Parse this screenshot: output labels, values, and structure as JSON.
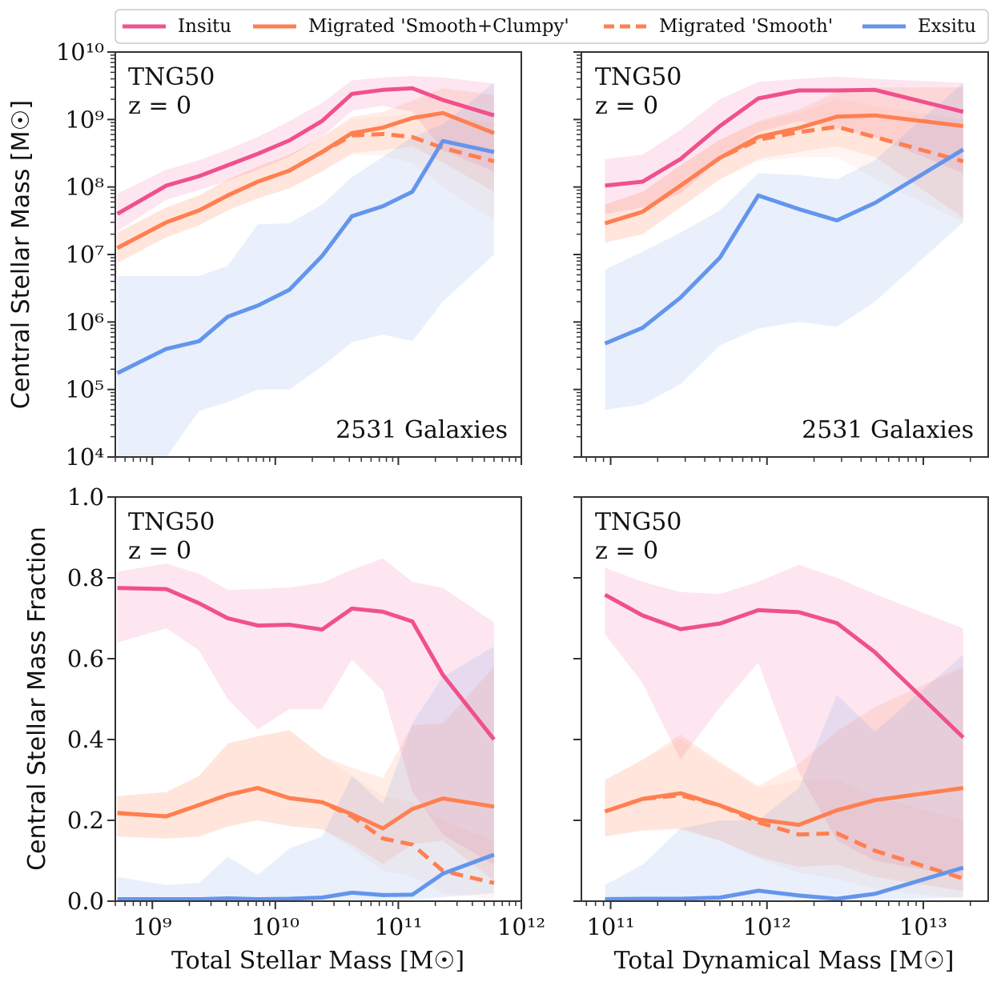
{
  "legend": {
    "items": [
      {
        "key": "insitu",
        "label": "Insitu"
      },
      {
        "key": "mig_sc",
        "label": "Migrated 'Smooth+Clumpy'"
      },
      {
        "key": "mig_s",
        "label": "Migrated 'Smooth'"
      },
      {
        "key": "exsitu",
        "label": "Exsitu"
      }
    ],
    "placement": "top-center"
  },
  "colors": {
    "insitu": "#f0508c",
    "mig_sc": "#ff7f50",
    "mig_s": "#ff7f50",
    "exsitu": "#6495ed"
  },
  "axis_labels": {
    "y_top": "Central Stellar Mass [M☉]",
    "y_bottom": "Central Stellar Mass Fraction",
    "x_left": "Total Stellar Mass [M☉]",
    "x_right": "Total Dynamical Mass [M☉]"
  },
  "chart_data": [
    {
      "id": "top-left",
      "type": "line",
      "annotations": [
        "TNG50",
        "z = 0",
        "2531 Galaxies"
      ],
      "xscale": "log",
      "yscale": "log",
      "xlim": [
        500000000.0,
        1000000000000.0
      ],
      "ylim": [
        10000.0,
        10000000000.0
      ],
      "xticks": [
        1000000000.0,
        10000000000.0,
        100000000000.0,
        1000000000000.0
      ],
      "yticks": [
        10000.0,
        100000.0,
        1000000.0,
        10000000.0,
        100000000.0,
        1000000000.0,
        10000000000.0
      ],
      "x": [
        520000000.0,
        1300000000.0,
        2400000000.0,
        4100000000.0,
        7200000000.0,
        13000000000.0,
        24000000000.0,
        42000000000.0,
        75000000000.0,
        130000000000.0,
        230000000000.0,
        600000000000.0
      ],
      "series": [
        {
          "key": "insitu",
          "values": [
            40000000.0,
            105000000.0,
            145000000.0,
            210000000.0,
            310000000.0,
            490000000.0,
            950000000.0,
            2400000000.0,
            2750000000.0,
            2900000000.0,
            1950000000.0,
            1150000000.0
          ],
          "band": {
            "lo": [
              22000000.0,
              65000000.0,
              90000000.0,
              125000000.0,
              180000000.0,
              280000000.0,
              550000000.0,
              1350000000.0,
              1600000000.0,
              1300000000.0,
              350000000.0,
              170000000.0
            ],
            "hi": [
              80000000.0,
              180000000.0,
              250000000.0,
              360000000.0,
              550000000.0,
              950000000.0,
              1750000000.0,
              3800000000.0,
              4200000000.0,
              4400000000.0,
              4200000000.0,
              3400000000.0
            ]
          }
        },
        {
          "key": "mig_sc",
          "values": [
            12500000.0,
            30000000.0,
            45000000.0,
            75000000.0,
            120000000.0,
            175000000.0,
            330000000.0,
            630000000.0,
            760000000.0,
            1050000000.0,
            1250000000.0,
            630000000.0
          ],
          "band": {
            "lo": [
              7500000.0,
              18000000.0,
              27000000.0,
              45000000.0,
              68000000.0,
              95000000.0,
              170000000.0,
              320000000.0,
              350000000.0,
              400000000.0,
              230000000.0,
              85000000.0
            ],
            "hi": [
              21000000.0,
              50000000.0,
              75000000.0,
              130000000.0,
              200000000.0,
              300000000.0,
              550000000.0,
              1100000000.0,
              1300000000.0,
              1900000000.0,
              2900000000.0,
              2300000000.0
            ]
          }
        },
        {
          "key": "mig_s",
          "dashed": true,
          "values": [
            12500000.0,
            30000000.0,
            45000000.0,
            75000000.0,
            120000000.0,
            175000000.0,
            330000000.0,
            580000000.0,
            610000000.0,
            550000000.0,
            380000000.0,
            240000000.0
          ],
          "band": {
            "lo": [
              7500000.0,
              18000000.0,
              27000000.0,
              45000000.0,
              68000000.0,
              95000000.0,
              170000000.0,
              300000000.0,
              290000000.0,
              230000000.0,
              100000000.0,
              32000000.0
            ],
            "hi": [
              21000000.0,
              50000000.0,
              75000000.0,
              130000000.0,
              200000000.0,
              300000000.0,
              550000000.0,
              1000000000.0,
              1100000000.0,
              1200000000.0,
              1100000000.0,
              900000000.0
            ]
          }
        },
        {
          "key": "exsitu",
          "values": [
            175000.0,
            400000.0,
            520000.0,
            1200000.0,
            1750000.0,
            3000000.0,
            9500000.0,
            37000000.0,
            52000000.0,
            85000000.0,
            480000000.0,
            330000000.0
          ],
          "band": {
            "lo": [
              10000.0,
              10000.0,
              48000.0,
              65000.0,
              100000.0,
              100000.0,
              220000.0,
              500000.0,
              650000.0,
              520000.0,
              2000000.0,
              10000000.0
            ],
            "hi": [
              4800000.0,
              4800000.0,
              4800000.0,
              6800000.0,
              28000000.0,
              29000000.0,
              55000000.0,
              140000000.0,
              280000000.0,
              550000000.0,
              850000000.0,
              3500000000.0
            ]
          }
        }
      ]
    },
    {
      "id": "top-right",
      "type": "line",
      "annotations": [
        "TNG50",
        "z = 0",
        "2531 Galaxies"
      ],
      "xscale": "log",
      "yscale": "log",
      "xlim": [
        65000000000.0,
        26000000000000.0
      ],
      "ylim": [
        10000.0,
        10000000000.0
      ],
      "xticks": [
        100000000000.0,
        1000000000000.0,
        10000000000000.0
      ],
      "yticks": [
        10000.0,
        100000.0,
        1000000.0,
        10000000.0,
        100000000.0,
        1000000000.0,
        10000000000.0
      ],
      "x": [
        92000000000.0,
        160000000000.0,
        280000000000.0,
        500000000000.0,
        880000000000.0,
        1600000000000.0,
        2800000000000.0,
        4900000000000.0,
        18000000000000.0
      ],
      "series": [
        {
          "key": "insitu",
          "values": [
            105000000.0,
            120000000.0,
            260000000.0,
            800000000.0,
            2050000000.0,
            2700000000.0,
            2700000000.0,
            2750000000.0,
            1300000000.0
          ],
          "band": {
            "lo": [
              40000000.0,
              50000000.0,
              80000000.0,
              260000000.0,
              650000000.0,
              950000000.0,
              750000000.0,
              550000000.0,
              160000000.0
            ],
            "hi": [
              260000000.0,
              300000000.0,
              700000000.0,
              2000000000.0,
              3600000000.0,
              4000000000.0,
              4300000000.0,
              4000000000.0,
              3500000000.0
            ]
          }
        },
        {
          "key": "mig_sc",
          "values": [
            29000000.0,
            43000000.0,
            105000000.0,
            270000000.0,
            550000000.0,
            750000000.0,
            1100000000.0,
            1150000000.0,
            800000000.0
          ],
          "band": {
            "lo": [
              15000000.0,
              20000000.0,
              50000000.0,
              130000000.0,
              260000000.0,
              330000000.0,
              400000000.0,
              280000000.0,
              35000000.0
            ],
            "hi": [
              55000000.0,
              85000000.0,
              210000000.0,
              500000000.0,
              950000000.0,
              1400000000.0,
              2600000000.0,
              3000000000.0,
              3000000000.0
            ]
          }
        },
        {
          "key": "mig_s",
          "dashed": true,
          "values": [
            29000000.0,
            43000000.0,
            105000000.0,
            270000000.0,
            500000000.0,
            650000000.0,
            780000000.0,
            550000000.0,
            240000000.0
          ],
          "band": {
            "lo": [
              15000000.0,
              20000000.0,
              50000000.0,
              130000000.0,
              240000000.0,
              280000000.0,
              280000000.0,
              130000000.0,
              30000000.0
            ],
            "hi": [
              55000000.0,
              85000000.0,
              210000000.0,
              500000000.0,
              900000000.0,
              1250000000.0,
              2000000000.0,
              1600000000.0,
              1000000000.0
            ]
          }
        },
        {
          "key": "exsitu",
          "values": [
            480000.0,
            820000.0,
            2300000.0,
            9000000.0,
            75000000.0,
            47000000.0,
            32000000.0,
            58000000.0,
            360000000.0
          ],
          "band": {
            "lo": [
              50000.0,
              60000.0,
              120000.0,
              450000.0,
              800000.0,
              1000000.0,
              850000.0,
              2000000.0,
              30000000.0
            ],
            "hi": [
              6000000.0,
              11000000.0,
              21000000.0,
              45000000.0,
              160000000.0,
              150000000.0,
              130000000.0,
              250000000.0,
              3500000000.0
            ]
          }
        }
      ]
    },
    {
      "id": "bottom-left",
      "type": "line",
      "annotations": [
        "TNG50",
        "z = 0"
      ],
      "xscale": "log",
      "yscale": "linear",
      "xlim": [
        500000000.0,
        1000000000000.0
      ],
      "ylim": [
        0.0,
        1.0
      ],
      "xticks": [
        1000000000.0,
        10000000000.0,
        100000000000.0,
        1000000000000.0
      ],
      "yticks": [
        0.0,
        0.2,
        0.4,
        0.6,
        0.8,
        1.0
      ],
      "x": [
        520000000.0,
        1300000000.0,
        2400000000.0,
        4100000000.0,
        7200000000.0,
        13000000000.0,
        24000000000.0,
        42000000000.0,
        75000000000.0,
        130000000000.0,
        230000000000.0,
        600000000000.0
      ],
      "series": [
        {
          "key": "insitu",
          "values": [
            0.775,
            0.772,
            0.737,
            0.7,
            0.682,
            0.684,
            0.672,
            0.724,
            0.716,
            0.692,
            0.56,
            0.4
          ],
          "band": {
            "lo": [
              0.64,
              0.675,
              0.62,
              0.5,
              0.425,
              0.475,
              0.475,
              0.598,
              0.52,
              0.27,
              0.165,
              0.09
            ],
            "hi": [
              0.815,
              0.835,
              0.81,
              0.77,
              0.772,
              0.776,
              0.788,
              0.82,
              0.848,
              0.79,
              0.775,
              0.69
            ]
          }
        },
        {
          "key": "mig_sc",
          "values": [
            0.218,
            0.21,
            0.238,
            0.263,
            0.28,
            0.255,
            0.245,
            0.215,
            0.18,
            0.228,
            0.254,
            0.234
          ],
          "band": {
            "lo": [
              0.16,
              0.155,
              0.16,
              0.185,
              0.2,
              0.186,
              0.178,
              0.14,
              0.092,
              0.14,
              0.15,
              0.05
            ],
            "hi": [
              0.26,
              0.27,
              0.31,
              0.39,
              0.408,
              0.423,
              0.36,
              0.33,
              0.305,
              0.435,
              0.44,
              0.58
            ]
          }
        },
        {
          "key": "mig_s",
          "dashed": true,
          "values": [
            0.218,
            0.21,
            0.238,
            0.263,
            0.28,
            0.255,
            0.245,
            0.21,
            0.155,
            0.14,
            0.075,
            0.045
          ],
          "band": {
            "lo": [
              0.16,
              0.155,
              0.16,
              0.185,
              0.2,
              0.186,
              0.178,
              0.13,
              0.075,
              0.06,
              0.02,
              0.005
            ],
            "hi": [
              0.26,
              0.27,
              0.31,
              0.39,
              0.408,
              0.423,
              0.36,
              0.31,
              0.26,
              0.245,
              0.2,
              0.15
            ]
          }
        },
        {
          "key": "exsitu",
          "values": [
            0.005,
            0.005,
            0.005,
            0.007,
            0.005,
            0.006,
            0.009,
            0.021,
            0.015,
            0.016,
            0.068,
            0.115
          ],
          "band": {
            "lo": [
              0.0,
              0.0,
              0.0,
              0.0,
              0.0,
              0.0,
              0.0,
              0.002,
              0.002,
              0.004,
              0.01,
              0.02
            ],
            "hi": [
              0.06,
              0.04,
              0.045,
              0.11,
              0.065,
              0.13,
              0.16,
              0.31,
              0.24,
              0.44,
              0.555,
              0.63
            ]
          }
        }
      ]
    },
    {
      "id": "bottom-right",
      "type": "line",
      "annotations": [
        "TNG50",
        "z = 0"
      ],
      "xscale": "log",
      "yscale": "linear",
      "xlim": [
        65000000000.0,
        26000000000000.0
      ],
      "ylim": [
        0.0,
        1.0
      ],
      "xticks": [
        100000000000.0,
        1000000000000.0,
        10000000000000.0
      ],
      "yticks": [
        0.0,
        0.2,
        0.4,
        0.6,
        0.8,
        1.0
      ],
      "x": [
        92000000000.0,
        160000000000.0,
        280000000000.0,
        500000000000.0,
        880000000000.0,
        1600000000000.0,
        2800000000000.0,
        4900000000000.0,
        18000000000000.0
      ],
      "series": [
        {
          "key": "insitu",
          "values": [
            0.758,
            0.707,
            0.673,
            0.687,
            0.72,
            0.715,
            0.688,
            0.616,
            0.405
          ],
          "band": {
            "lo": [
              0.66,
              0.54,
              0.35,
              0.48,
              0.59,
              0.32,
              0.15,
              0.1,
              0.06
            ],
            "hi": [
              0.825,
              0.79,
              0.765,
              0.76,
              0.79,
              0.832,
              0.8,
              0.76,
              0.675
            ]
          }
        },
        {
          "key": "mig_sc",
          "values": [
            0.222,
            0.253,
            0.267,
            0.237,
            0.202,
            0.189,
            0.225,
            0.25,
            0.28
          ],
          "band": {
            "lo": [
              0.16,
              0.175,
              0.18,
              0.15,
              0.11,
              0.085,
              0.09,
              0.06,
              0.025
            ],
            "hi": [
              0.3,
              0.35,
              0.412,
              0.345,
              0.285,
              0.34,
              0.42,
              0.48,
              0.58
            ]
          }
        },
        {
          "key": "mig_s",
          "dashed": true,
          "values": [
            0.222,
            0.253,
            0.262,
            0.237,
            0.195,
            0.165,
            0.168,
            0.125,
            0.056
          ],
          "band": {
            "lo": [
              0.16,
              0.175,
              0.175,
              0.15,
              0.105,
              0.07,
              0.055,
              0.03,
              0.005
            ],
            "hi": [
              0.3,
              0.35,
              0.4,
              0.34,
              0.28,
              0.3,
              0.3,
              0.26,
              0.2
            ]
          }
        },
        {
          "key": "exsitu",
          "values": [
            0.005,
            0.006,
            0.006,
            0.009,
            0.026,
            0.014,
            0.006,
            0.018,
            0.083
          ],
          "band": {
            "lo": [
              0.0,
              0.0,
              0.0,
              0.0,
              0.002,
              0.0,
              0.0,
              0.002,
              0.01
            ],
            "hi": [
              0.04,
              0.09,
              0.18,
              0.2,
              0.2,
              0.28,
              0.51,
              0.42,
              0.61
            ]
          }
        }
      ]
    }
  ]
}
